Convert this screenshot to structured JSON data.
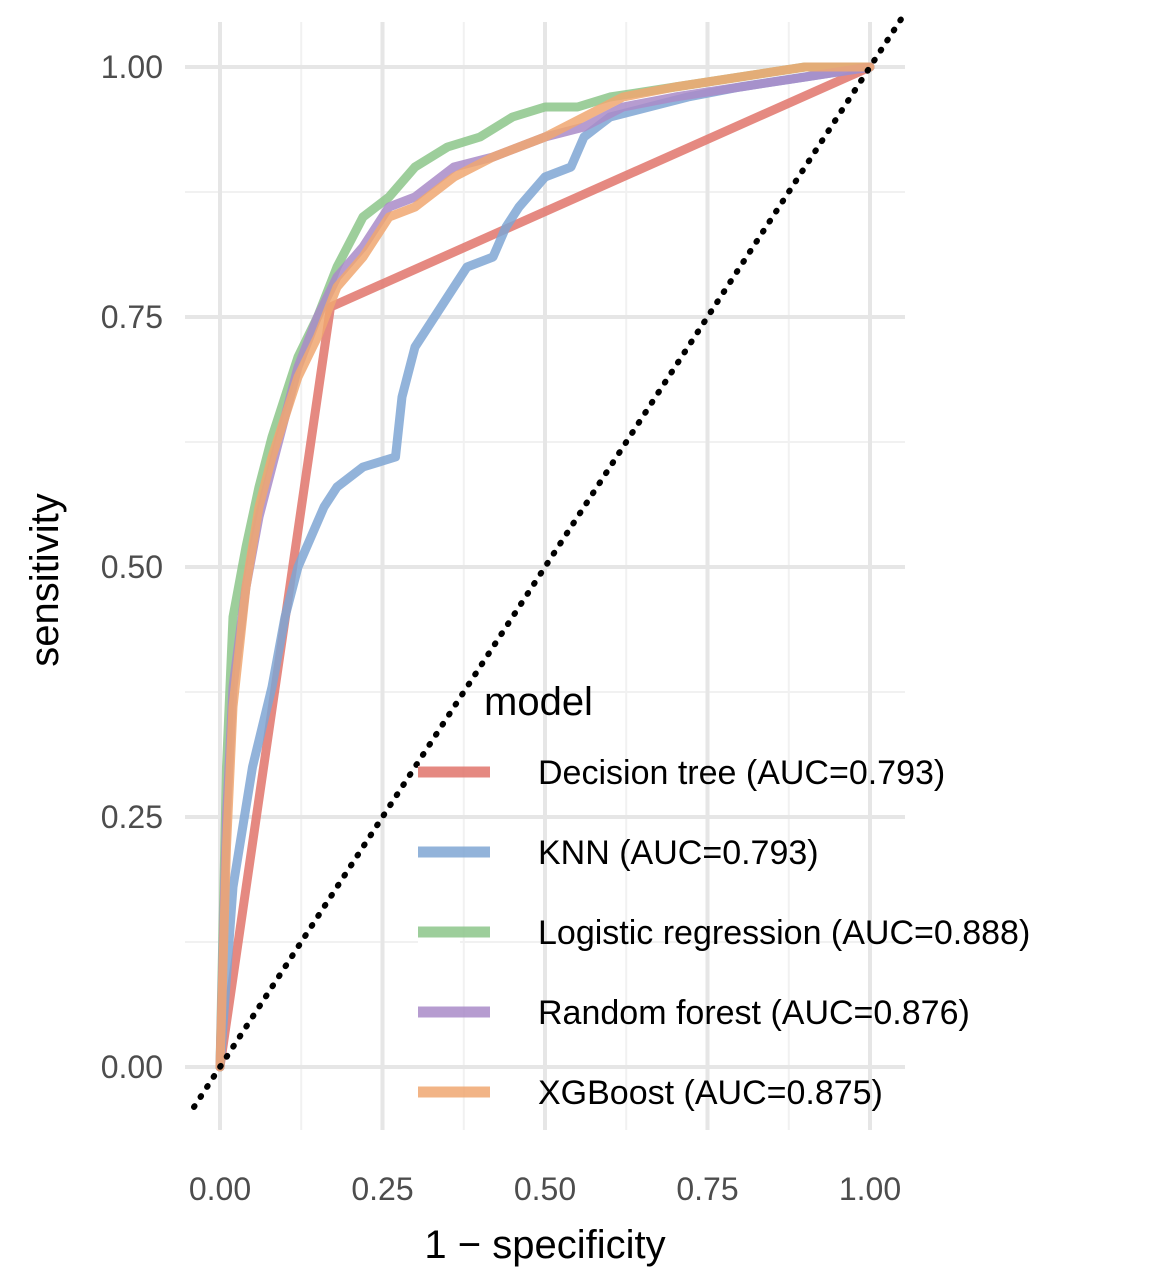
{
  "chart_data": {
    "type": "line",
    "xlabel": "1 − specificity",
    "ylabel": "sensitivity",
    "xlim": [
      0,
      1
    ],
    "ylim": [
      0,
      1
    ],
    "x_ticks": [
      "0.00",
      "0.25",
      "0.50",
      "0.75",
      "1.00"
    ],
    "y_ticks": [
      "0.00",
      "0.25",
      "0.50",
      "0.75",
      "1.00"
    ],
    "grid": true,
    "reference_line": "dotted diagonal y = x",
    "legend": {
      "title": "model",
      "position": "bottom-right inside"
    },
    "series": [
      {
        "name": "Decision tree (AUC=0.793)",
        "color": "#E0746B",
        "x": [
          0.0,
          0.17,
          1.0
        ],
        "y": [
          0.0,
          0.76,
          1.0
        ]
      },
      {
        "name": "KNN (AUC=0.793)",
        "color": "#7FA6D4",
        "x": [
          0.0,
          0.02,
          0.05,
          0.08,
          0.1,
          0.12,
          0.14,
          0.16,
          0.18,
          0.22,
          0.27,
          0.28,
          0.3,
          0.34,
          0.38,
          0.42,
          0.44,
          0.46,
          0.5,
          0.54,
          0.56,
          0.6,
          0.66,
          0.72,
          0.8,
          0.9,
          1.0
        ],
        "y": [
          0.0,
          0.18,
          0.3,
          0.38,
          0.45,
          0.5,
          0.53,
          0.56,
          0.58,
          0.6,
          0.61,
          0.67,
          0.72,
          0.76,
          0.8,
          0.81,
          0.84,
          0.86,
          0.89,
          0.9,
          0.93,
          0.95,
          0.96,
          0.97,
          0.98,
          0.99,
          1.0
        ]
      },
      {
        "name": "Logistic regression (AUC=0.888)",
        "color": "#8CC68A",
        "x": [
          0.0,
          0.01,
          0.02,
          0.04,
          0.06,
          0.08,
          0.1,
          0.12,
          0.15,
          0.18,
          0.22,
          0.26,
          0.3,
          0.35,
          0.4,
          0.45,
          0.5,
          0.55,
          0.6,
          0.7,
          0.8,
          0.9,
          1.0
        ],
        "y": [
          0.0,
          0.3,
          0.45,
          0.52,
          0.58,
          0.63,
          0.67,
          0.71,
          0.75,
          0.8,
          0.85,
          0.87,
          0.9,
          0.92,
          0.93,
          0.95,
          0.96,
          0.96,
          0.97,
          0.98,
          0.99,
          1.0,
          1.0
        ]
      },
      {
        "name": "Random forest (AUC=0.876)",
        "color": "#A98BC8",
        "x": [
          0.0,
          0.01,
          0.02,
          0.04,
          0.06,
          0.08,
          0.1,
          0.12,
          0.15,
          0.18,
          0.22,
          0.26,
          0.3,
          0.36,
          0.42,
          0.5,
          0.56,
          0.62,
          0.7,
          0.8,
          0.9,
          1.0
        ],
        "y": [
          0.0,
          0.25,
          0.38,
          0.48,
          0.55,
          0.6,
          0.65,
          0.7,
          0.75,
          0.79,
          0.82,
          0.86,
          0.87,
          0.9,
          0.91,
          0.93,
          0.94,
          0.96,
          0.97,
          0.98,
          0.99,
          1.0
        ]
      },
      {
        "name": "XGBoost (AUC=0.875)",
        "color": "#F0A771",
        "x": [
          0.0,
          0.01,
          0.02,
          0.04,
          0.06,
          0.08,
          0.1,
          0.12,
          0.15,
          0.18,
          0.22,
          0.26,
          0.3,
          0.36,
          0.42,
          0.5,
          0.56,
          0.62,
          0.7,
          0.8,
          0.9,
          1.0
        ],
        "y": [
          0.0,
          0.22,
          0.36,
          0.48,
          0.56,
          0.61,
          0.65,
          0.69,
          0.73,
          0.78,
          0.81,
          0.85,
          0.86,
          0.89,
          0.91,
          0.93,
          0.95,
          0.97,
          0.98,
          0.99,
          1.0,
          1.0
        ]
      }
    ]
  }
}
